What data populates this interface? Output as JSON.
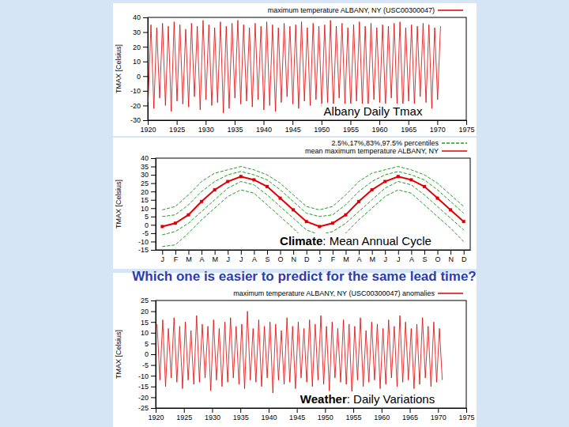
{
  "question": "Which one is easier to predict for the same lead time?",
  "chart_data": [
    {
      "type": "line",
      "y_label": "TMAX [Celsius]",
      "annotation": {
        "text": "Albany Daily Tmax"
      },
      "xlim": [
        1920,
        1975
      ],
      "xticks": [
        1920,
        1925,
        1930,
        1935,
        1940,
        1945,
        1950,
        1955,
        1960,
        1965,
        1970,
        1975
      ],
      "ylim": [
        -30,
        40
      ],
      "yticks": [
        -30,
        -20,
        -10,
        0,
        10,
        20,
        30,
        40
      ],
      "grid": false,
      "x": [
        1920.05,
        1920.55,
        1921.05,
        1921.55,
        1922.05,
        1922.55,
        1923.05,
        1923.55,
        1924.05,
        1924.55,
        1925.05,
        1925.55,
        1926.05,
        1926.55,
        1927.05,
        1927.55,
        1928.05,
        1928.55,
        1929.05,
        1929.55,
        1930.05,
        1930.55,
        1931.05,
        1931.55,
        1932.05,
        1932.55,
        1933.05,
        1933.55,
        1934.05,
        1934.55,
        1935.05,
        1935.55,
        1936.05,
        1936.55,
        1937.05,
        1937.55,
        1938.05,
        1938.55,
        1939.05,
        1939.55,
        1940.05,
        1940.55,
        1941.05,
        1941.55,
        1942.05,
        1942.55,
        1943.05,
        1943.55,
        1944.05,
        1944.55,
        1945.05,
        1945.55,
        1946.05,
        1946.55,
        1947.05,
        1947.55,
        1948.05,
        1948.55,
        1949.05,
        1949.55,
        1950.05,
        1950.55,
        1951.05,
        1951.55,
        1952.05,
        1952.55,
        1953.05,
        1953.55,
        1954.05,
        1954.55,
        1955.05,
        1955.55,
        1956.05,
        1956.55,
        1957.05,
        1957.55,
        1958.05,
        1958.55,
        1959.05,
        1959.55,
        1960.05,
        1960.55,
        1961.05,
        1961.55,
        1962.05,
        1962.55,
        1963.05,
        1963.55,
        1964.05,
        1964.55,
        1965.05,
        1965.55,
        1966.05,
        1966.55,
        1967.05,
        1967.55,
        1968.05,
        1968.55,
        1969.05,
        1969.55,
        1970.05,
        1970.55
      ],
      "series": [
        {
          "name": "maximum temperature ALBANY, NY (USC00300047)",
          "color": "#e00000",
          "line_style": "solid",
          "values": [
            -18,
            35,
            -22,
            33,
            -15,
            36,
            -20,
            34,
            -24,
            37,
            -17,
            35,
            -19,
            32,
            -21,
            36,
            -14,
            34,
            -23,
            38,
            -16,
            35,
            -20,
            33,
            -18,
            37,
            -25,
            34,
            -22,
            36,
            -15,
            38,
            -19,
            35,
            -17,
            33,
            -21,
            36,
            -16,
            34,
            -23,
            37,
            -20,
            35,
            -24,
            33,
            -18,
            36,
            -14,
            34,
            -19,
            35,
            -22,
            37,
            -17,
            33,
            -20,
            36,
            -16,
            34,
            -21,
            35,
            -18,
            38,
            -23,
            34,
            -15,
            36,
            -19,
            33,
            -22,
            35,
            -17,
            37,
            -20,
            34,
            -24,
            36,
            -16,
            33,
            -18,
            35,
            -21,
            34,
            -15,
            36,
            -19,
            37,
            -23,
            33,
            -17,
            35,
            -20,
            34,
            -14,
            36,
            -18,
            35,
            -22,
            33,
            -16,
            34
          ]
        }
      ]
    },
    {
      "type": "line",
      "y_label": "TMAX [Celsius]",
      "annotation": {
        "bold": "Climate",
        "text": ": Mean Annual Cycle"
      },
      "categories": [
        "J",
        "F",
        "M",
        "A",
        "M",
        "J",
        "J",
        "A",
        "S",
        "O",
        "N",
        "D",
        "J",
        "F",
        "M",
        "A",
        "M",
        "J",
        "J",
        "A",
        "S",
        "O",
        "N",
        "D"
      ],
      "ylim": [
        -15,
        40
      ],
      "yticks": [
        -15,
        -10,
        -5,
        0,
        5,
        10,
        15,
        20,
        25,
        30,
        35,
        40
      ],
      "grid": false,
      "percentile_series": {
        "name": "2.5%,17%,83%,97.5% percentiles",
        "color": "#229922",
        "line_style": "dashed",
        "values": [
          [
            -13,
            -12,
            -5,
            3,
            10,
            17,
            21,
            19,
            12,
            5,
            -2,
            -10,
            -13,
            -12,
            -5,
            3,
            10,
            17,
            21,
            19,
            12,
            5,
            -2,
            -10
          ],
          [
            -6,
            -4,
            1,
            8,
            15,
            22,
            26,
            24,
            18,
            11,
            4,
            -3,
            -6,
            -4,
            1,
            8,
            15,
            22,
            26,
            24,
            18,
            11,
            4,
            -3
          ],
          [
            5,
            6,
            12,
            20,
            26,
            30,
            32,
            30,
            27,
            21,
            14,
            7,
            5,
            6,
            12,
            20,
            26,
            30,
            32,
            30,
            27,
            21,
            14,
            7
          ],
          [
            9,
            11,
            18,
            26,
            31,
            33,
            35,
            33,
            30,
            25,
            18,
            11,
            9,
            11,
            18,
            26,
            31,
            33,
            35,
            33,
            30,
            25,
            18,
            11
          ]
        ]
      },
      "series": [
        {
          "name": "mean maximum temperature ALBANY, NY",
          "color": "#e00000",
          "line_style": "solid",
          "marker": "square",
          "values": [
            -1,
            1,
            6,
            14,
            21,
            26,
            29,
            27,
            23,
            16,
            9,
            2,
            -1,
            1,
            6,
            14,
            21,
            26,
            29,
            27,
            23,
            16,
            9,
            2
          ]
        }
      ]
    },
    {
      "type": "line",
      "y_label": "TMAX [Celsius]",
      "annotation": {
        "bold": "Weather",
        "text": ": Daily Variations"
      },
      "xlim": [
        1920,
        1975
      ],
      "xticks": [
        1920,
        1925,
        1930,
        1935,
        1940,
        1945,
        1950,
        1955,
        1960,
        1965,
        1970,
        1975
      ],
      "ylim": [
        -25,
        25
      ],
      "yticks": [
        -25,
        -20,
        -15,
        -10,
        -5,
        0,
        5,
        10,
        15,
        20,
        25
      ],
      "grid": false,
      "x": [
        1920.25,
        1920.75,
        1921.25,
        1921.75,
        1922.25,
        1922.75,
        1923.25,
        1923.75,
        1924.25,
        1924.75,
        1925.25,
        1925.75,
        1926.25,
        1926.75,
        1927.25,
        1927.75,
        1928.25,
        1928.75,
        1929.25,
        1929.75,
        1930.25,
        1930.75,
        1931.25,
        1931.75,
        1932.25,
        1932.75,
        1933.25,
        1933.75,
        1934.25,
        1934.75,
        1935.25,
        1935.75,
        1936.25,
        1936.75,
        1937.25,
        1937.75,
        1938.25,
        1938.75,
        1939.25,
        1939.75,
        1940.25,
        1940.75,
        1941.25,
        1941.75,
        1942.25,
        1942.75,
        1943.25,
        1943.75,
        1944.25,
        1944.75,
        1945.25,
        1945.75,
        1946.25,
        1946.75,
        1947.25,
        1947.75,
        1948.25,
        1948.75,
        1949.25,
        1949.75,
        1950.25,
        1950.75,
        1951.25,
        1951.75,
        1952.25,
        1952.75,
        1953.25,
        1953.75,
        1954.25,
        1954.75,
        1955.25,
        1955.75,
        1956.25,
        1956.75,
        1957.25,
        1957.75,
        1958.25,
        1958.75,
        1959.25,
        1959.75,
        1960.25,
        1960.75,
        1961.25,
        1961.75,
        1962.25,
        1962.75,
        1963.25,
        1963.75,
        1964.25,
        1964.75,
        1965.25,
        1965.75,
        1966.25,
        1966.75,
        1967.25,
        1967.75,
        1968.25,
        1968.75,
        1969.25,
        1969.75,
        1970.25,
        1970.75
      ],
      "series": [
        {
          "name": "maximum temperature ALBANY, NY (USC00300047) anomalies",
          "color": "#e00000",
          "line_style": "solid",
          "values": [
            14,
            -12,
            16,
            -15,
            12,
            -11,
            17,
            -13,
            13,
            -16,
            15,
            -12,
            11,
            -14,
            18,
            -13,
            14,
            -11,
            13,
            -17,
            16,
            -12,
            12,
            -15,
            15,
            -13,
            17,
            -11,
            13,
            -14,
            14,
            -16,
            20,
            -12,
            12,
            -13,
            16,
            -15,
            13,
            -11,
            15,
            -18,
            14,
            -12,
            11,
            -14,
            17,
            -13,
            13,
            -16,
            15,
            -11,
            12,
            -13,
            16,
            -15,
            14,
            -12,
            18,
            -14,
            13,
            -17,
            15,
            -11,
            12,
            -13,
            16,
            -14,
            14,
            -19,
            13,
            -12,
            17,
            -15,
            11,
            -13,
            15,
            -12,
            14,
            -16,
            12,
            -14,
            16,
            -11,
            13,
            -15,
            18,
            -13,
            15,
            -12,
            12,
            -16,
            14,
            -14,
            17,
            -11,
            13,
            -15,
            15,
            -13,
            12,
            -12
          ]
        }
      ]
    }
  ]
}
